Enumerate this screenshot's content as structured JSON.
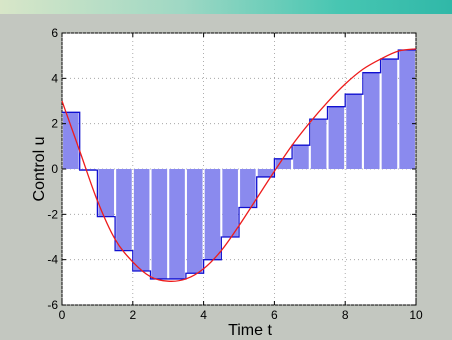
{
  "chart_data": {
    "type": "bar",
    "xlabel": "Time t",
    "ylabel": "Control u",
    "xlim": [
      0,
      10
    ],
    "ylim": [
      -6,
      6
    ],
    "x_ticks": [
      "0",
      "2",
      "4",
      "6",
      "8",
      "10"
    ],
    "y_ticks": [
      "-6",
      "-4",
      "-2",
      "0",
      "2",
      "4",
      "6"
    ],
    "grid": true,
    "bar_width": 0.5,
    "step": 0.5,
    "x": [
      0.0,
      0.5,
      1.0,
      1.5,
      2.0,
      2.5,
      3.0,
      3.5,
      4.0,
      4.5,
      5.0,
      5.5,
      6.0,
      6.5,
      7.0,
      7.5,
      8.0,
      8.5,
      9.0,
      9.5
    ],
    "values": [
      2.5,
      -0.05,
      -2.1,
      -3.6,
      -4.5,
      -4.85,
      -4.85,
      -4.6,
      -4.0,
      -3.0,
      -1.7,
      -0.35,
      0.45,
      1.05,
      2.2,
      2.75,
      3.3,
      4.25,
      4.85,
      5.25
    ],
    "colors": {
      "bar": "#8a8aee",
      "step": "#1010d0",
      "curve": "#ee1c1c"
    },
    "series": [
      {
        "type": "line",
        "x": [
          0,
          0.5,
          1,
          1.5,
          2,
          2.5,
          3,
          3.5,
          4,
          4.5,
          5,
          5.5,
          6,
          6.5,
          7,
          7.5,
          8,
          8.5,
          9,
          9.5,
          10
        ],
        "values": [
          3.0,
          0.8,
          -1.4,
          -3.1,
          -4.1,
          -4.75,
          -4.95,
          -4.85,
          -4.4,
          -3.6,
          -2.5,
          -1.3,
          -0.1,
          1.05,
          2.05,
          2.95,
          3.75,
          4.4,
          4.85,
          5.2,
          5.3
        ]
      }
    ]
  }
}
